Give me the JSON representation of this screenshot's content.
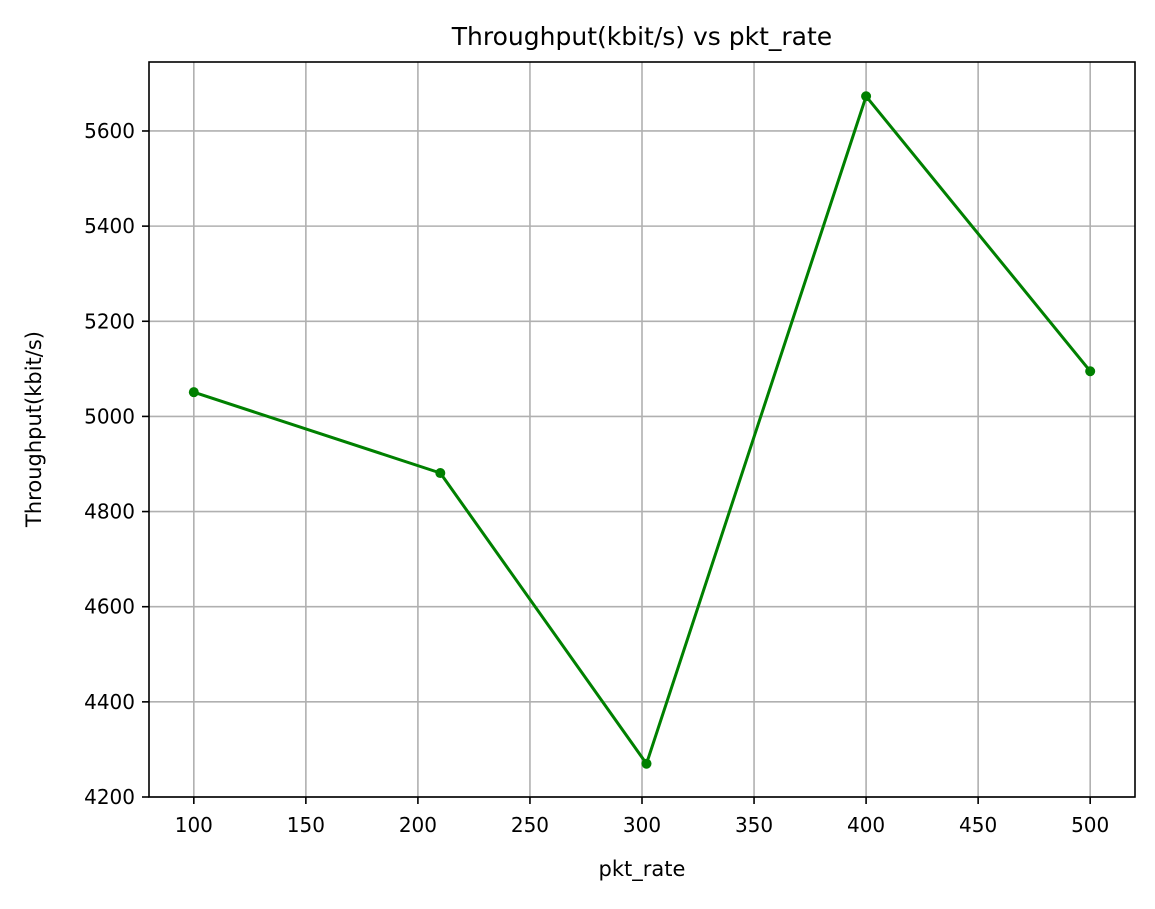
{
  "chart_data": {
    "type": "line",
    "title": "Throughput(kbit/s) vs pkt_rate",
    "xlabel": "pkt_rate",
    "ylabel": "Throughput(kbit/s)",
    "xlim": [
      80,
      520
    ],
    "ylim": [
      4200,
      5745
    ],
    "xticks": [
      100,
      150,
      200,
      250,
      300,
      350,
      400,
      450,
      500
    ],
    "xtick_labels": [
      "100",
      "150",
      "200",
      "250",
      "300",
      "350",
      "400",
      "450",
      "500"
    ],
    "yticks": [
      4200,
      4400,
      4600,
      4800,
      5000,
      5200,
      5400,
      5600
    ],
    "ytick_labels": [
      "4200",
      "4400",
      "4600",
      "4800",
      "5000",
      "5200",
      "5400",
      "5600"
    ],
    "grid": true,
    "series": [
      {
        "color": "#008000",
        "marker": "circle",
        "x": [
          100,
          210,
          302,
          400,
          500
        ],
        "y": [
          5051,
          4881,
          4270,
          5673,
          5095
        ]
      }
    ]
  }
}
